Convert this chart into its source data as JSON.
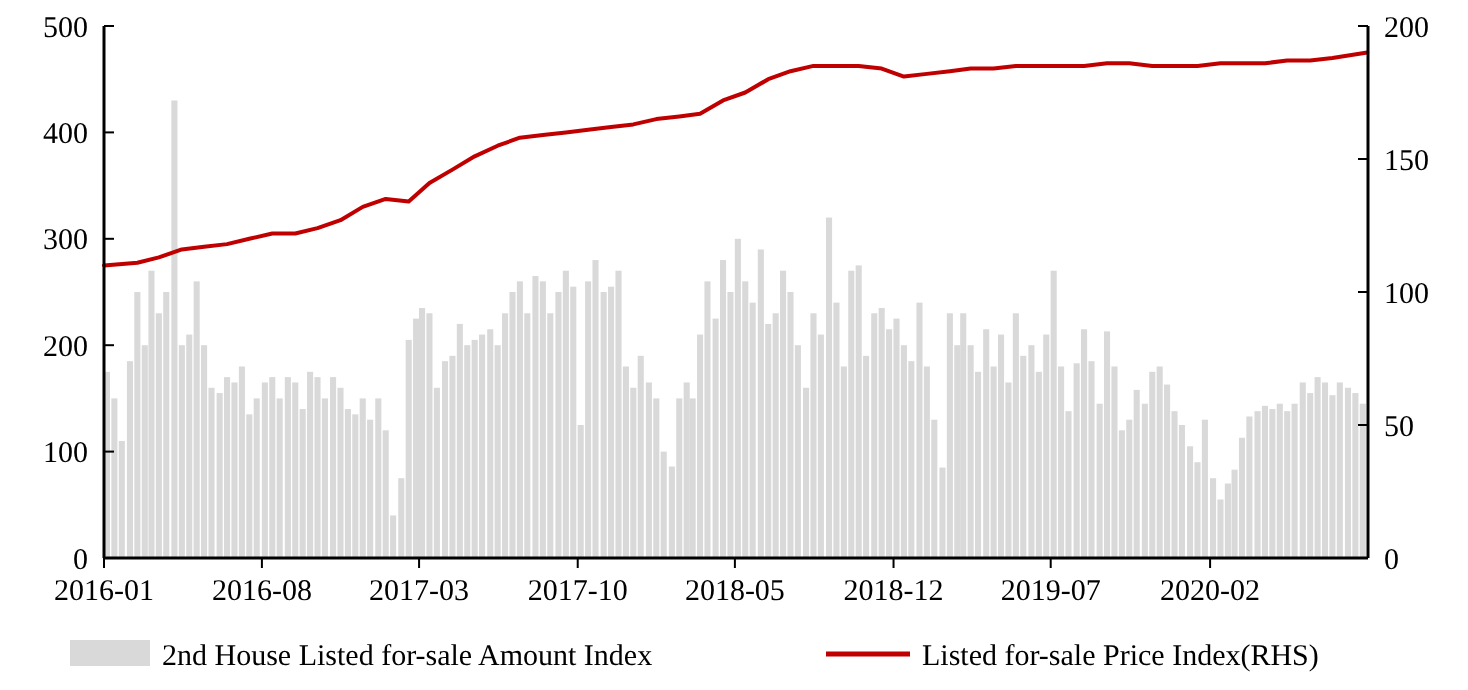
{
  "chart_data": {
    "type": "bar",
    "xlim": [
      "2016-01",
      "2020-09"
    ],
    "xticks": [
      "2016-01",
      "2016-08",
      "2017-03",
      "2017-10",
      "2018-05",
      "2018-12",
      "2019-07",
      "2020-02"
    ],
    "ylim": [
      0,
      500
    ],
    "yticks": [
      0,
      100,
      200,
      300,
      400,
      500
    ],
    "y2lim": [
      0,
      200
    ],
    "y2ticks": [
      0,
      50,
      100,
      150,
      200
    ],
    "grid": false,
    "legend": "bottom",
    "series": [
      {
        "name": "2nd House Listed for-sale Amount Index",
        "color": "#d9d9d9",
        "x": [
          "2016-01-05",
          "2016-01-15",
          "2016-01-25",
          "2016-02-05",
          "2016-02-15",
          "2016-02-25",
          "2016-03-05",
          "2016-03-15",
          "2016-03-25",
          "2016-04-05",
          "2016-04-15",
          "2016-04-25",
          "2016-05-05",
          "2016-05-15",
          "2016-05-25",
          "2016-06-05",
          "2016-06-15",
          "2016-06-25",
          "2016-07-05",
          "2016-07-15",
          "2016-07-25",
          "2016-08-05",
          "2016-08-15",
          "2016-08-25",
          "2016-09-05",
          "2016-09-15",
          "2016-09-25",
          "2016-10-05",
          "2016-10-15",
          "2016-10-25",
          "2016-11-05",
          "2016-11-15",
          "2016-11-25",
          "2016-12-05",
          "2016-12-15",
          "2016-12-25",
          "2017-01-05",
          "2017-01-15",
          "2017-01-25",
          "2017-02-05",
          "2017-02-15",
          "2017-02-25",
          "2017-03-05",
          "2017-03-15",
          "2017-03-25",
          "2017-04-05",
          "2017-04-15",
          "2017-04-25",
          "2017-05-05",
          "2017-05-15",
          "2017-05-25",
          "2017-06-05",
          "2017-06-15",
          "2017-06-25",
          "2017-07-05",
          "2017-07-15",
          "2017-07-25",
          "2017-08-05",
          "2017-08-15",
          "2017-08-25",
          "2017-09-05",
          "2017-09-15",
          "2017-09-25",
          "2017-10-05",
          "2017-10-15",
          "2017-10-25",
          "2017-11-05",
          "2017-11-15",
          "2017-11-25",
          "2017-12-05",
          "2017-12-15",
          "2017-12-25",
          "2018-01-05",
          "2018-01-15",
          "2018-01-25",
          "2018-02-05",
          "2018-02-15",
          "2018-02-25",
          "2018-03-05",
          "2018-03-15",
          "2018-03-25",
          "2018-04-05",
          "2018-04-15",
          "2018-04-25",
          "2018-05-05",
          "2018-05-15",
          "2018-05-25",
          "2018-06-05",
          "2018-06-15",
          "2018-06-25",
          "2018-07-05",
          "2018-07-15",
          "2018-07-25",
          "2018-08-05",
          "2018-08-15",
          "2018-08-25",
          "2018-09-05",
          "2018-09-15",
          "2018-09-25",
          "2018-10-05",
          "2018-10-15",
          "2018-10-25",
          "2018-11-05",
          "2018-11-15",
          "2018-11-25",
          "2018-12-05",
          "2018-12-15",
          "2018-12-25",
          "2019-01-05",
          "2019-01-15",
          "2019-01-25",
          "2019-02-05",
          "2019-02-15",
          "2019-02-25",
          "2019-03-05",
          "2019-03-15",
          "2019-03-25",
          "2019-04-05",
          "2019-04-15",
          "2019-04-25",
          "2019-05-05",
          "2019-05-15",
          "2019-05-25",
          "2019-06-05",
          "2019-06-15",
          "2019-06-25",
          "2019-07-05",
          "2019-07-15",
          "2019-07-25",
          "2019-08-05",
          "2019-08-15",
          "2019-08-25",
          "2019-09-05",
          "2019-09-15",
          "2019-09-25",
          "2019-10-05",
          "2019-10-15",
          "2019-10-25",
          "2019-11-05",
          "2019-11-15",
          "2019-11-25",
          "2019-12-05",
          "2019-12-15",
          "2019-12-25",
          "2020-01-05",
          "2020-01-15",
          "2020-01-25",
          "2020-02-05",
          "2020-02-15",
          "2020-02-25",
          "2020-03-05",
          "2020-03-15",
          "2020-03-25",
          "2020-04-05",
          "2020-04-15",
          "2020-04-25",
          "2020-05-05",
          "2020-05-15",
          "2020-05-25",
          "2020-06-05",
          "2020-06-15",
          "2020-06-25",
          "2020-07-05",
          "2020-07-15",
          "2020-07-25",
          "2020-08-05",
          "2020-08-15",
          "2020-08-25"
        ],
        "values": [
          175,
          150,
          110,
          185,
          250,
          200,
          270,
          230,
          250,
          430,
          200,
          210,
          260,
          200,
          160,
          155,
          170,
          165,
          180,
          135,
          150,
          165,
          170,
          150,
          170,
          165,
          140,
          175,
          170,
          150,
          170,
          160,
          140,
          135,
          150,
          130,
          150,
          120,
          40,
          75,
          205,
          225,
          235,
          230,
          160,
          185,
          190,
          220,
          200,
          205,
          210,
          215,
          200,
          230,
          250,
          260,
          230,
          265,
          260,
          230,
          250,
          270,
          255,
          125,
          260,
          280,
          250,
          255,
          270,
          180,
          160,
          190,
          165,
          150,
          100,
          86,
          150,
          165,
          150,
          210,
          260,
          225,
          280,
          250,
          300,
          260,
          240,
          290,
          220,
          230,
          270,
          250,
          200,
          160,
          230,
          210,
          320,
          240,
          180,
          270,
          275,
          190,
          230,
          235,
          215,
          225,
          200,
          185,
          240,
          180,
          130,
          85,
          230,
          200,
          230,
          200,
          175,
          215,
          180,
          210,
          165,
          230,
          190,
          200,
          175,
          210,
          270,
          180,
          138,
          183,
          215,
          185,
          145,
          213,
          180,
          120,
          130,
          158,
          145,
          175,
          180,
          163,
          138,
          125,
          105,
          90,
          130,
          75,
          55,
          70,
          83,
          113,
          133,
          138,
          143,
          140,
          145,
          138,
          145,
          165,
          155,
          170,
          165,
          153,
          165,
          160,
          155,
          145
        ]
      },
      {
        "name": "Listed for-sale Price Index(RHS)",
        "type": "line",
        "axis": "y2",
        "color": "#c00000",
        "x": [
          "2016-01-01",
          "2016-02-15",
          "2016-03-15",
          "2016-04-15",
          "2016-05-15",
          "2016-06-15",
          "2016-07-15",
          "2016-08-15",
          "2016-09-15",
          "2016-10-15",
          "2016-11-15",
          "2016-12-15",
          "2017-01-15",
          "2017-02-15",
          "2017-03-15",
          "2017-04-15",
          "2017-05-15",
          "2017-06-15",
          "2017-07-15",
          "2017-08-15",
          "2017-09-15",
          "2017-10-15",
          "2017-11-15",
          "2017-12-15",
          "2018-01-15",
          "2018-02-15",
          "2018-03-15",
          "2018-04-15",
          "2018-05-15",
          "2018-06-15",
          "2018-07-15",
          "2018-08-15",
          "2018-09-15",
          "2018-10-15",
          "2018-11-15",
          "2018-12-15",
          "2019-01-15",
          "2019-02-15",
          "2019-03-15",
          "2019-04-15",
          "2019-05-15",
          "2019-06-15",
          "2019-07-15",
          "2019-08-15",
          "2019-09-15",
          "2019-10-15",
          "2019-11-15",
          "2019-12-15",
          "2020-01-15",
          "2020-02-15",
          "2020-03-15",
          "2020-04-15",
          "2020-05-15",
          "2020-06-15",
          "2020-07-15",
          "2020-08-31"
        ],
        "values": [
          110,
          111,
          113,
          116,
          117,
          118,
          120,
          122,
          122,
          124,
          127,
          132,
          135,
          134,
          141,
          146,
          151,
          155,
          158,
          159,
          160,
          161,
          162,
          163,
          165,
          166,
          167,
          172,
          175,
          180,
          183,
          185,
          185,
          185,
          184,
          181,
          182,
          183,
          184,
          184,
          185,
          185,
          185,
          185,
          186,
          186,
          185,
          185,
          185,
          186,
          186,
          186,
          187,
          187,
          188,
          190
        ]
      }
    ]
  }
}
